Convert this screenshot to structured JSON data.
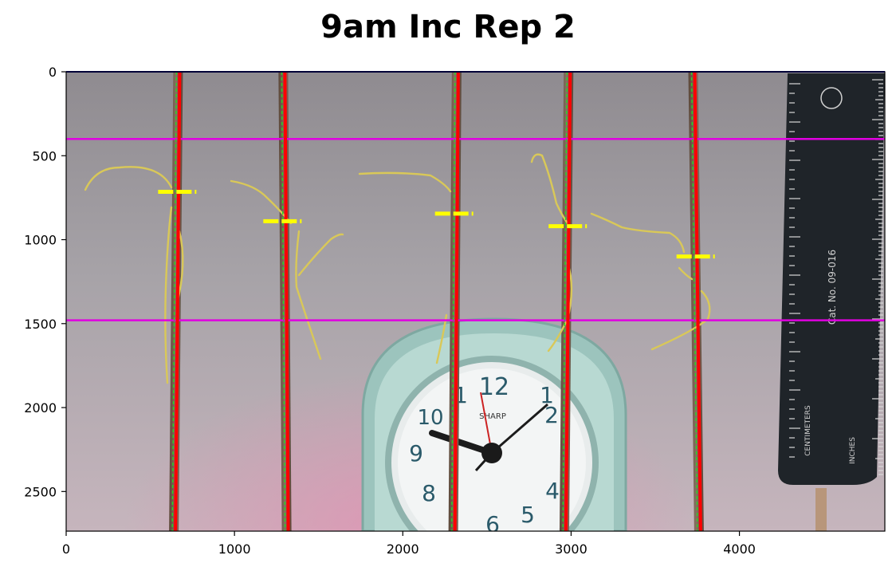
{
  "figure": {
    "title": "9am Inc Rep 2"
  },
  "image_extent": {
    "x_range": [
      0,
      4864
    ],
    "y_range": [
      0,
      2736
    ]
  },
  "axes": {
    "x_ticks": [
      0,
      1000,
      2000,
      3000,
      4000
    ],
    "y_ticks": [
      0,
      500,
      1000,
      1500,
      2000,
      2500
    ],
    "x_tick_labels": [
      "0",
      "1000",
      "2000",
      "3000",
      "4000"
    ],
    "y_tick_labels": [
      "0",
      "500",
      "1000",
      "1500",
      "2000",
      "2500"
    ]
  },
  "overlays": {
    "boundary_lines_y": [
      400,
      1480
    ],
    "boundary_color": "#e000e0",
    "stem_color": "#ff0000",
    "centerline_color": "#22dd22",
    "marker_color": "#ffff00",
    "stems": [
      {
        "x_top": 665,
        "x_bottom": 640
      },
      {
        "x_top": 1290,
        "x_bottom": 1310
      },
      {
        "x_top": 2320,
        "x_bottom": 2300
      },
      {
        "x_top": 2985,
        "x_bottom": 2960
      },
      {
        "x_top": 3725,
        "x_bottom": 3760
      }
    ],
    "markers": [
      {
        "x": 660,
        "y": 715
      },
      {
        "x": 1285,
        "y": 890
      },
      {
        "x": 2305,
        "y": 845
      },
      {
        "x": 2980,
        "y": 920
      },
      {
        "x": 3740,
        "y": 1100
      }
    ]
  },
  "photo": {
    "background_top": "#9d989d",
    "background_bottom": "#c7b4bf",
    "clock_color": "#9fc6bf",
    "ruler_color": "#1e2328",
    "ruler_text_catalog": "Cat. No. 09-016",
    "ruler_text_cm": "CENTIMETERS",
    "ruler_text_in": "INCHES",
    "clock_brand": "SHARP"
  }
}
